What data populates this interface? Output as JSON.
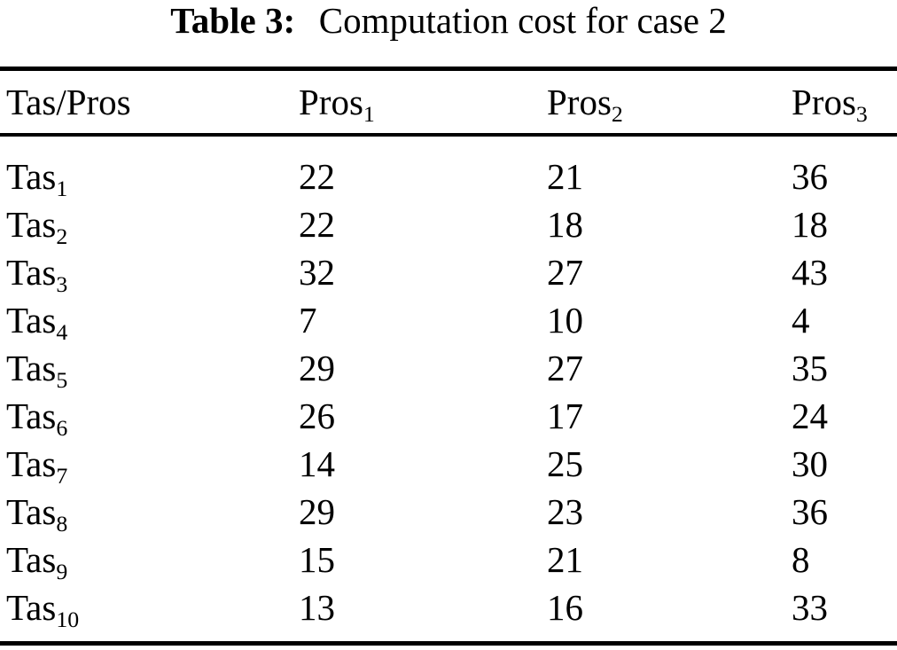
{
  "page": {
    "background_color": "#ffffff",
    "text_color": "#000000"
  },
  "title": {
    "label": "Table 3:",
    "caption": "Computation cost for case 2"
  },
  "table": {
    "columns": [
      {
        "base": "Tas/Pros",
        "sub": ""
      },
      {
        "base": "Pros",
        "sub": "1"
      },
      {
        "base": "Pros",
        "sub": "2"
      },
      {
        "base": "Pros",
        "sub": "3"
      }
    ],
    "rows": [
      {
        "base": "Tas",
        "sub": "1",
        "values": [
          "22",
          "21",
          "36"
        ]
      },
      {
        "base": "Tas",
        "sub": "2",
        "values": [
          "22",
          "18",
          "18"
        ]
      },
      {
        "base": "Tas",
        "sub": "3",
        "values": [
          "32",
          "27",
          "43"
        ]
      },
      {
        "base": "Tas",
        "sub": "4",
        "values": [
          "7",
          "10",
          "4"
        ]
      },
      {
        "base": "Tas",
        "sub": "5",
        "values": [
          "29",
          "27",
          "35"
        ]
      },
      {
        "base": "Tas",
        "sub": "6",
        "values": [
          "26",
          "17",
          "24"
        ]
      },
      {
        "base": "Tas",
        "sub": "7",
        "values": [
          "14",
          "25",
          "30"
        ]
      },
      {
        "base": "Tas",
        "sub": "8",
        "values": [
          "29",
          "23",
          "36"
        ]
      },
      {
        "base": "Tas",
        "sub": "9",
        "values": [
          "15",
          "21",
          "8"
        ]
      },
      {
        "base": "Tas",
        "sub": "10",
        "values": [
          "13",
          "16",
          "33"
        ]
      }
    ]
  }
}
